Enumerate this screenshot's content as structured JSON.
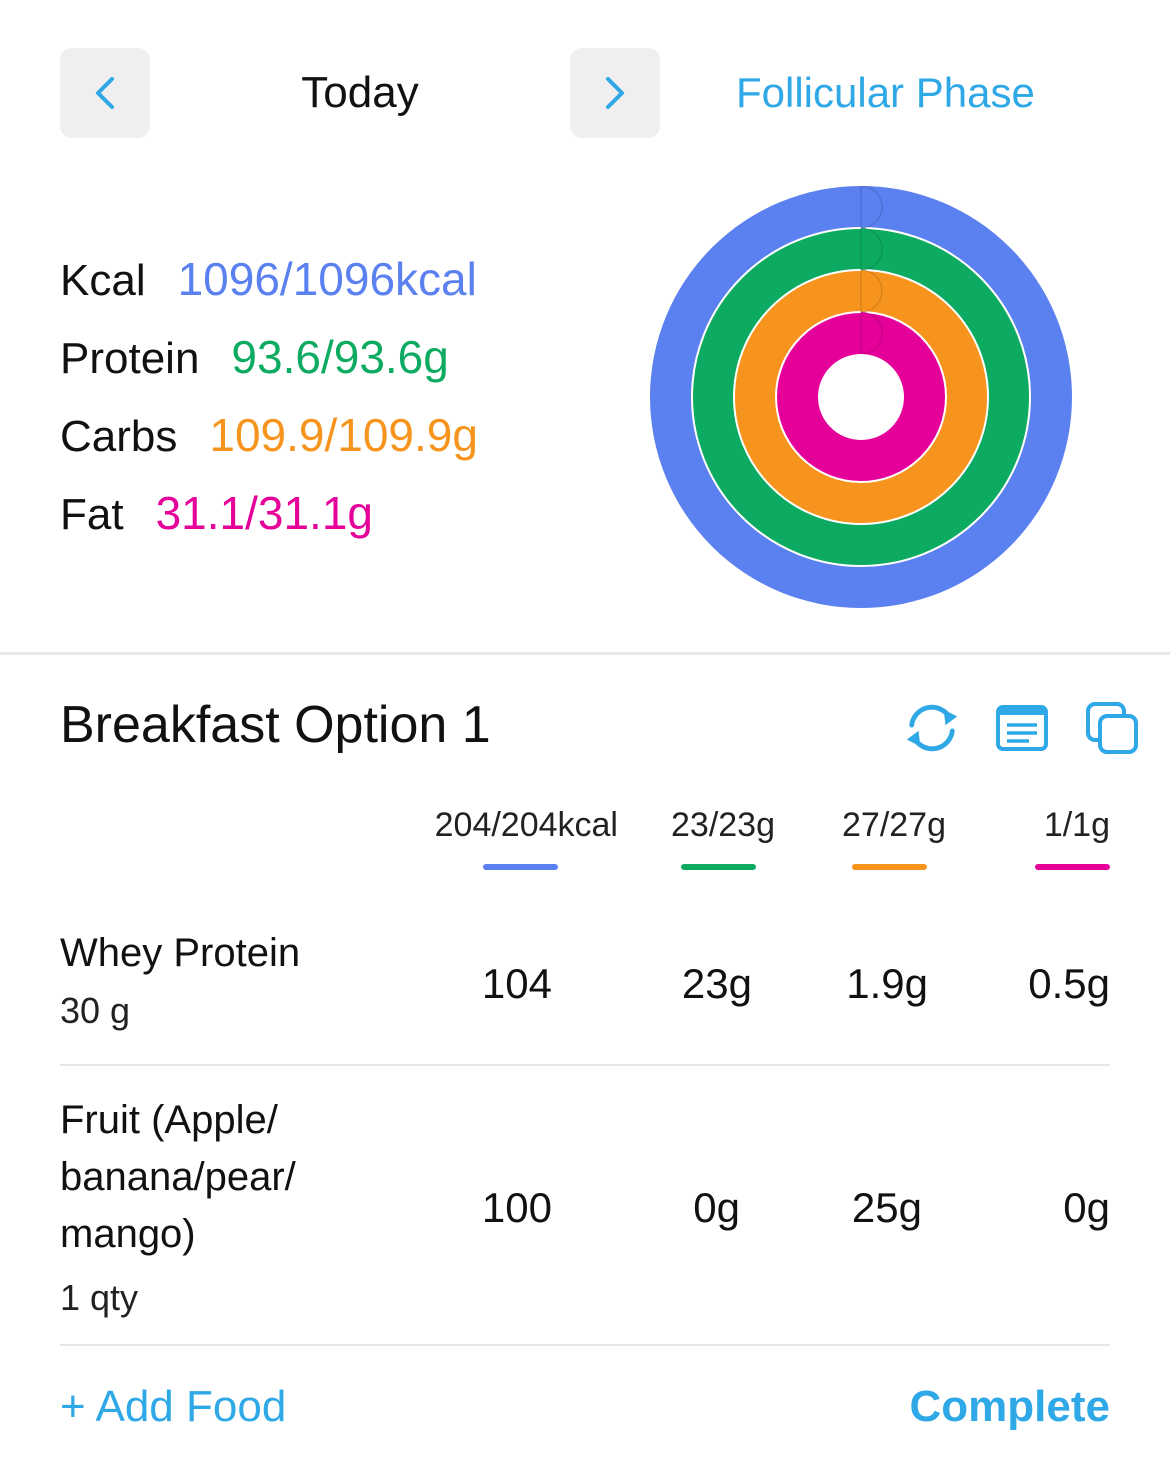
{
  "header": {
    "prev_icon": "chevron-left-icon",
    "next_icon": "chevron-right-icon",
    "date_label": "Today",
    "phase_label": "Follicular Phase"
  },
  "summary": {
    "kcal": {
      "label": "Kcal",
      "value": "1096/1096kcal",
      "color": "#5b80f0",
      "fraction": 1.0
    },
    "protein": {
      "label": "Protein",
      "value": "93.6/93.6g",
      "color": "#0dab61",
      "fraction": 1.0
    },
    "carbs": {
      "label": "Carbs",
      "value": "109.9/109.9g",
      "color": "#f7941d",
      "fraction": 1.0
    },
    "fat": {
      "label": "Fat",
      "value": "31.1/31.1g",
      "color": "#e5009a",
      "fraction": 1.0
    }
  },
  "meal": {
    "title": "Breakfast Option 1",
    "icons": [
      "refresh-icon",
      "notes-icon",
      "copy-icon"
    ],
    "totals": {
      "kcal": "204/204kcal",
      "protein": "23/23g",
      "carbs": "27/27g",
      "fat": "1/1g"
    },
    "foods": [
      {
        "name": "Whey Protein",
        "qty": "30 g",
        "kcal": "104",
        "protein": "23g",
        "carbs": "1.9g",
        "fat": "0.5g"
      },
      {
        "name_lines": [
          "Fruit (Apple/",
          "banana/pear/",
          "mango)"
        ],
        "qty": "1 qty",
        "kcal": "100",
        "protein": "0g",
        "carbs": "25g",
        "fat": "0g"
      }
    ],
    "add_food_label": "+ Add Food",
    "complete_label": "Complete"
  }
}
